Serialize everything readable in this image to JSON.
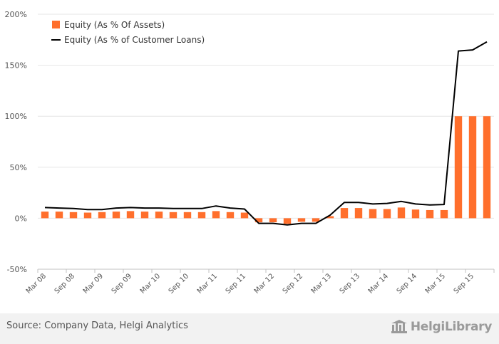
{
  "chart_data": {
    "type": "bar+line",
    "y_axis": {
      "ticks": [
        "200%",
        "150%",
        "100%",
        "50%",
        "0%",
        "-50%"
      ],
      "tick_values": [
        200,
        150,
        100,
        50,
        0,
        -50
      ],
      "range": [
        -50,
        200
      ],
      "grid": true
    },
    "x_axis": {
      "tick_labels": [
        "Mar 08",
        "Sep 08",
        "Mar 09",
        "Sep 09",
        "Mar 10",
        "Sep 10",
        "Mar 11",
        "Sep 11",
        "Mar 12",
        "Sep 12",
        "Mar 13",
        "Sep 13",
        "Mar 14",
        "Sep 14",
        "Mar 15",
        "Sep 15"
      ]
    },
    "legend": {
      "position": "top-left",
      "items": [
        {
          "label": "Equity (As % Of Assets)",
          "type": "bar",
          "color": "#ff6f2c"
        },
        {
          "label": "Equity (As % of Customer Loans)",
          "type": "line",
          "color": "#000000"
        }
      ]
    },
    "series": [
      {
        "name": "Equity (As % Of Assets)",
        "type": "bar",
        "color": "#ff6f2c",
        "values": [
          6.5,
          6.5,
          6.0,
          5.5,
          6.0,
          6.5,
          7.0,
          6.5,
          6.5,
          6.0,
          6.0,
          6.0,
          7.0,
          6.0,
          5.5,
          -4.0,
          -4.0,
          -5.5,
          -3.5,
          -3.5,
          2.0,
          10.0,
          10.0,
          9.0,
          9.0,
          10.5,
          8.5,
          8.0,
          8.0,
          100.0,
          100.0,
          100.0
        ]
      },
      {
        "name": "Equity (As % of Customer Loans)",
        "type": "line",
        "color": "#000000",
        "values": [
          10.5,
          10.0,
          9.5,
          8.5,
          8.5,
          10.0,
          10.5,
          10.0,
          10.0,
          9.5,
          9.5,
          9.5,
          12.0,
          10.0,
          9.0,
          -5.0,
          -5.0,
          -6.5,
          -5.0,
          -5.0,
          3.0,
          15.5,
          15.5,
          14.0,
          14.5,
          16.5,
          14.0,
          13.0,
          13.5,
          164.0,
          165.0,
          173.0
        ]
      }
    ]
  },
  "footer": {
    "source": "Source: Company Data, Helgi Analytics",
    "logo_text": "HelgiLibrary"
  },
  "colors": {
    "bar": "#ff6f2c",
    "line": "#000000",
    "grid": "#e6e6e6",
    "footer_bg": "#f2f2f2"
  }
}
